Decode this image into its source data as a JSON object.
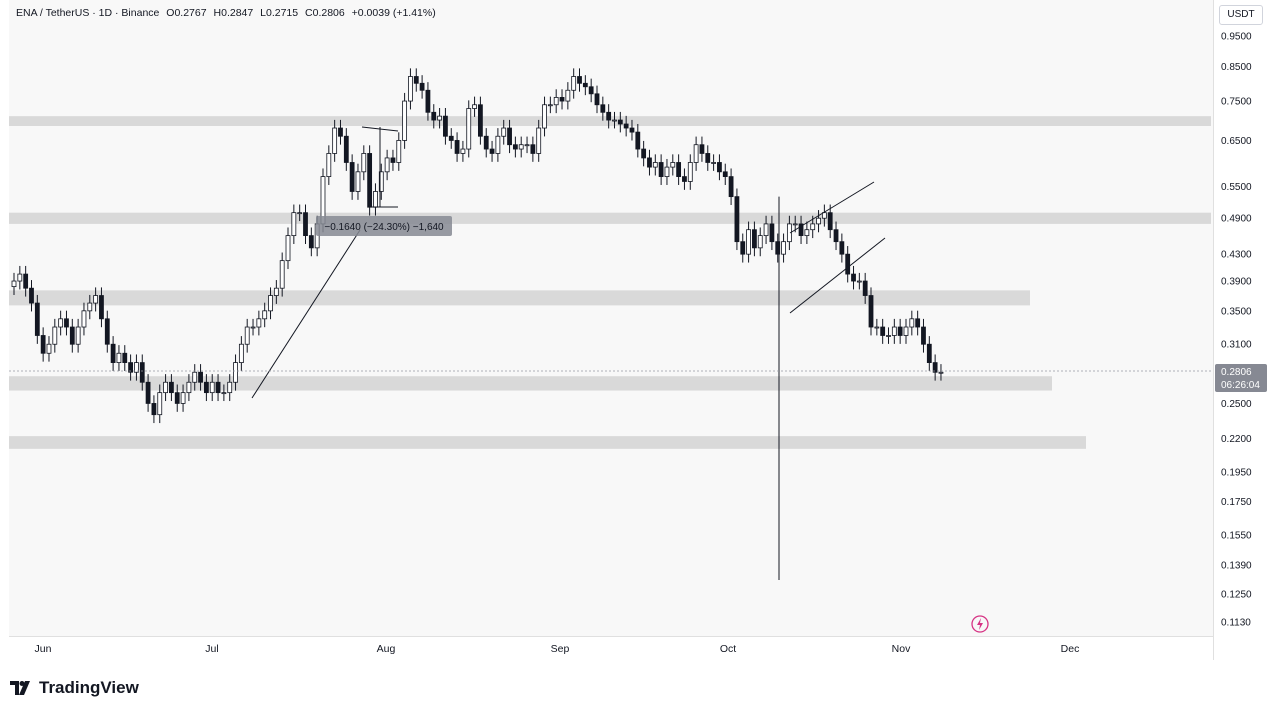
{
  "legend": {
    "symbol": "ENA / TetherUS · 1D · Binance",
    "open": "O0.2767",
    "high": "H0.2847",
    "low": "L0.2715",
    "close": "C0.2806",
    "change": "+0.0039 (+1.41%)"
  },
  "currency": "USDT",
  "last_price": "0.2806",
  "countdown": "06:26:04",
  "measure_label": "−0.1640 (−24.30%) −1,640",
  "brand": "TradingView",
  "colors": {
    "candle": "#131722",
    "zone": "#d9d9d9",
    "last_price_badge": "#868993"
  },
  "chart_data": {
    "type": "candlestick",
    "price_axis": [
      "0.9500",
      "0.8500",
      "0.7500",
      "0.6500",
      "0.5500",
      "0.4900",
      "0.4300",
      "0.3900",
      "0.3500",
      "0.3100",
      "0.2500",
      "0.2200",
      "0.1950",
      "0.1750",
      "0.1550",
      "0.1390",
      "0.1250",
      "0.1130"
    ],
    "time_axis": [
      "Jun",
      "Jul",
      "Aug",
      "Sep",
      "Oct",
      "Nov",
      "Dec"
    ],
    "scale": "log",
    "zones": [
      {
        "low": 0.685,
        "high": 0.71
      },
      {
        "low": 0.48,
        "high": 0.5
      },
      {
        "low": 0.357,
        "high": 0.377
      },
      {
        "low": 0.262,
        "high": 0.276
      },
      {
        "low": 0.212,
        "high": 0.222
      }
    ],
    "closes": [
      0.39,
      0.4,
      0.38,
      0.36,
      0.32,
      0.3,
      0.31,
      0.33,
      0.34,
      0.33,
      0.31,
      0.33,
      0.35,
      0.36,
      0.37,
      0.34,
      0.31,
      0.29,
      0.3,
      0.29,
      0.28,
      0.29,
      0.27,
      0.25,
      0.24,
      0.26,
      0.27,
      0.26,
      0.25,
      0.26,
      0.27,
      0.28,
      0.27,
      0.26,
      0.27,
      0.26,
      0.26,
      0.27,
      0.29,
      0.31,
      0.33,
      0.33,
      0.34,
      0.35,
      0.37,
      0.38,
      0.42,
      0.46,
      0.5,
      0.5,
      0.46,
      0.44,
      0.48,
      0.57,
      0.62,
      0.68,
      0.66,
      0.6,
      0.54,
      0.58,
      0.62,
      0.51,
      0.54,
      0.58,
      0.61,
      0.6,
      0.65,
      0.75,
      0.82,
      0.8,
      0.78,
      0.72,
      0.7,
      0.71,
      0.66,
      0.65,
      0.62,
      0.63,
      0.73,
      0.74,
      0.66,
      0.63,
      0.62,
      0.66,
      0.68,
      0.64,
      0.63,
      0.64,
      0.64,
      0.62,
      0.68,
      0.74,
      0.74,
      0.76,
      0.75,
      0.78,
      0.82,
      0.8,
      0.79,
      0.77,
      0.74,
      0.72,
      0.7,
      0.7,
      0.69,
      0.68,
      0.67,
      0.63,
      0.61,
      0.59,
      0.6,
      0.57,
      0.59,
      0.6,
      0.57,
      0.56,
      0.6,
      0.64,
      0.62,
      0.6,
      0.6,
      0.58,
      0.57,
      0.53,
      0.45,
      0.43,
      0.47,
      0.44,
      0.46,
      0.48,
      0.45,
      0.43,
      0.45,
      0.48,
      0.48,
      0.46,
      0.47,
      0.48,
      0.49,
      0.5,
      0.47,
      0.45,
      0.43,
      0.4,
      0.39,
      0.39,
      0.37,
      0.33,
      0.33,
      0.32,
      0.32,
      0.33,
      0.32,
      0.33,
      0.34,
      0.33,
      0.31,
      0.29,
      0.28,
      0.28
    ]
  }
}
